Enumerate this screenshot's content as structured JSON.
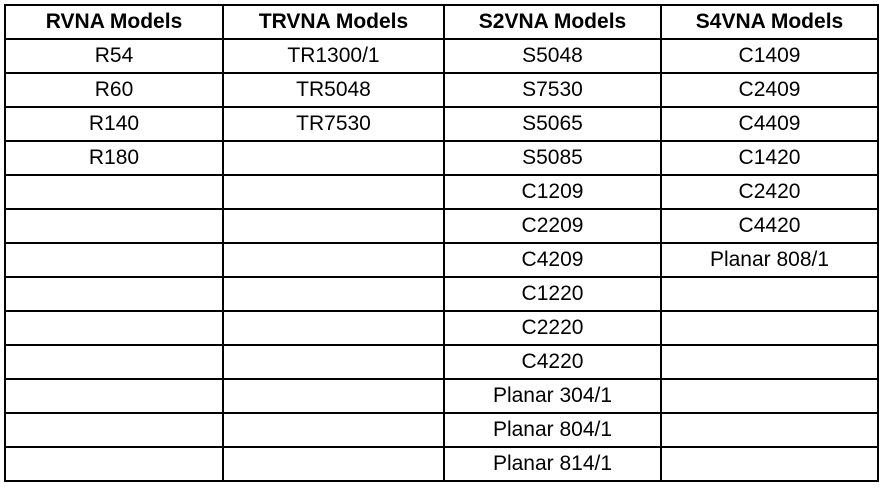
{
  "table": {
    "headers": [
      "RVNA Models",
      "TRVNA Models",
      "S2VNA Models",
      "S4VNA Models"
    ],
    "rows": [
      [
        "R54",
        "TR1300/1",
        "S5048",
        "C1409"
      ],
      [
        "R60",
        "TR5048",
        "S7530",
        "C2409"
      ],
      [
        "R140",
        "TR7530",
        "S5065",
        "C4409"
      ],
      [
        "R180",
        "",
        "S5085",
        "C1420"
      ],
      [
        "",
        "",
        "C1209",
        "C2420"
      ],
      [
        "",
        "",
        "C2209",
        "C4420"
      ],
      [
        "",
        "",
        "C4209",
        "Planar 808/1"
      ],
      [
        "",
        "",
        "C1220",
        ""
      ],
      [
        "",
        "",
        "C2220",
        ""
      ],
      [
        "",
        "",
        "C4220",
        ""
      ],
      [
        "",
        "",
        "Planar 304/1",
        ""
      ],
      [
        "",
        "",
        "Planar 804/1",
        ""
      ],
      [
        "",
        "",
        "Planar 814/1",
        ""
      ]
    ]
  }
}
